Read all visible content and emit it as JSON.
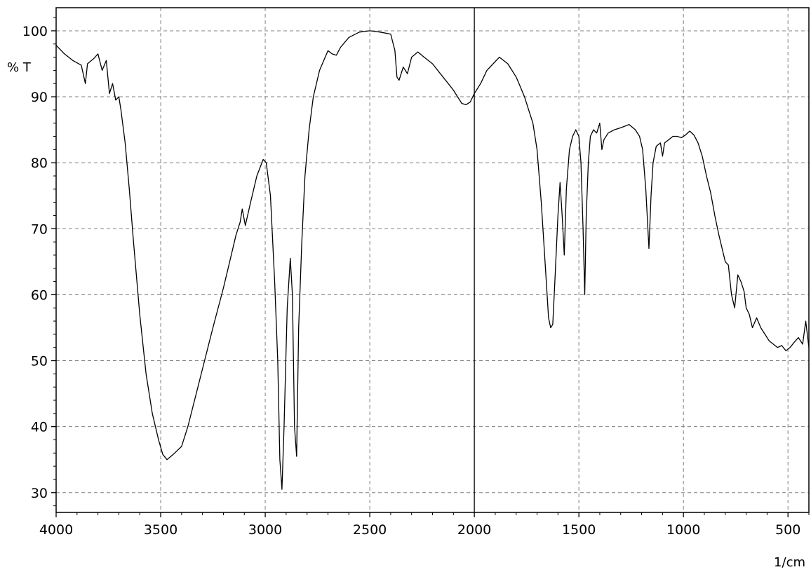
{
  "chart_data": {
    "type": "line",
    "title": "",
    "xlabel": "1/cm",
    "ylabel": "% T",
    "x_reversed": true,
    "xlim": [
      4000,
      400
    ],
    "ylim": [
      27,
      103.5
    ],
    "grid": true,
    "marker_line_x": 2000,
    "x_ticks": [
      4000,
      3500,
      3000,
      2500,
      2000,
      1500,
      1000,
      500
    ],
    "x_tick_labels": [
      "4000",
      "3500",
      "3000",
      "2500",
      "2000",
      "1500",
      "1000",
      "500"
    ],
    "y_ticks": [
      30,
      40,
      50,
      60,
      70,
      80,
      90,
      100
    ],
    "y_tick_labels": [
      "30",
      "40",
      "50",
      "60",
      "70",
      "80",
      "90",
      "100"
    ],
    "series": [
      {
        "color": "#000000",
        "points": [
          [
            4000,
            97.8
          ],
          [
            3960,
            96.5
          ],
          [
            3920,
            95.5
          ],
          [
            3880,
            94.8
          ],
          [
            3860,
            92.0
          ],
          [
            3850,
            95.0
          ],
          [
            3820,
            95.8
          ],
          [
            3800,
            96.5
          ],
          [
            3780,
            94.0
          ],
          [
            3760,
            95.5
          ],
          [
            3745,
            90.5
          ],
          [
            3730,
            92.0
          ],
          [
            3715,
            89.5
          ],
          [
            3700,
            90.0
          ],
          [
            3690,
            88.0
          ],
          [
            3670,
            83.0
          ],
          [
            3650,
            76.0
          ],
          [
            3630,
            68.0
          ],
          [
            3600,
            57.0
          ],
          [
            3570,
            48.0
          ],
          [
            3540,
            42.0
          ],
          [
            3510,
            38.0
          ],
          [
            3490,
            35.8
          ],
          [
            3470,
            35.0
          ],
          [
            3440,
            35.8
          ],
          [
            3400,
            37.0
          ],
          [
            3370,
            40.0
          ],
          [
            3330,
            45.0
          ],
          [
            3290,
            50.0
          ],
          [
            3250,
            55.0
          ],
          [
            3200,
            61.0
          ],
          [
            3170,
            65.0
          ],
          [
            3140,
            69.0
          ],
          [
            3120,
            71.0
          ],
          [
            3110,
            73.0
          ],
          [
            3095,
            70.5
          ],
          [
            3070,
            74.0
          ],
          [
            3040,
            78.0
          ],
          [
            3010,
            80.5
          ],
          [
            2995,
            80.0
          ],
          [
            2975,
            75.0
          ],
          [
            2955,
            62.0
          ],
          [
            2940,
            50.0
          ],
          [
            2930,
            35.0
          ],
          [
            2920,
            30.5
          ],
          [
            2910,
            40.0
          ],
          [
            2895,
            58.0
          ],
          [
            2880,
            65.5
          ],
          [
            2870,
            60.0
          ],
          [
            2860,
            40.0
          ],
          [
            2850,
            35.5
          ],
          [
            2840,
            55.0
          ],
          [
            2825,
            68.0
          ],
          [
            2810,
            78.0
          ],
          [
            2790,
            85.0
          ],
          [
            2770,
            90.0
          ],
          [
            2740,
            94.0
          ],
          [
            2720,
            95.5
          ],
          [
            2700,
            97.0
          ],
          [
            2680,
            96.5
          ],
          [
            2660,
            96.3
          ],
          [
            2640,
            97.5
          ],
          [
            2600,
            99.0
          ],
          [
            2550,
            99.8
          ],
          [
            2500,
            100.0
          ],
          [
            2450,
            99.8
          ],
          [
            2400,
            99.5
          ],
          [
            2380,
            97.0
          ],
          [
            2370,
            93.0
          ],
          [
            2360,
            92.5
          ],
          [
            2340,
            94.5
          ],
          [
            2320,
            93.5
          ],
          [
            2300,
            96.0
          ],
          [
            2270,
            96.8
          ],
          [
            2240,
            96.0
          ],
          [
            2200,
            95.0
          ],
          [
            2150,
            93.0
          ],
          [
            2100,
            91.0
          ],
          [
            2060,
            89.0
          ],
          [
            2040,
            88.8
          ],
          [
            2020,
            89.2
          ],
          [
            2000,
            90.5
          ],
          [
            1970,
            92.0
          ],
          [
            1940,
            94.0
          ],
          [
            1910,
            95.0
          ],
          [
            1880,
            96.0
          ],
          [
            1860,
            95.5
          ],
          [
            1840,
            95.0
          ],
          [
            1820,
            94.0
          ],
          [
            1800,
            93.0
          ],
          [
            1780,
            91.5
          ],
          [
            1760,
            90.0
          ],
          [
            1740,
            88.0
          ],
          [
            1720,
            86.0
          ],
          [
            1700,
            82.0
          ],
          [
            1680,
            74.0
          ],
          [
            1660,
            64.0
          ],
          [
            1645,
            56.5
          ],
          [
            1635,
            55.0
          ],
          [
            1625,
            55.5
          ],
          [
            1615,
            62.0
          ],
          [
            1600,
            72.0
          ],
          [
            1590,
            77.0
          ],
          [
            1580,
            72.0
          ],
          [
            1570,
            66.0
          ],
          [
            1560,
            76.0
          ],
          [
            1545,
            82.0
          ],
          [
            1530,
            84.0
          ],
          [
            1515,
            85.0
          ],
          [
            1500,
            84.0
          ],
          [
            1490,
            80.0
          ],
          [
            1480,
            70.0
          ],
          [
            1472,
            60.0
          ],
          [
            1465,
            72.0
          ],
          [
            1455,
            80.0
          ],
          [
            1445,
            84.0
          ],
          [
            1430,
            85.0
          ],
          [
            1415,
            84.5
          ],
          [
            1400,
            86.0
          ],
          [
            1390,
            82.0
          ],
          [
            1380,
            83.5
          ],
          [
            1360,
            84.5
          ],
          [
            1330,
            85.0
          ],
          [
            1300,
            85.3
          ],
          [
            1260,
            85.8
          ],
          [
            1230,
            85.0
          ],
          [
            1210,
            84.0
          ],
          [
            1195,
            82.0
          ],
          [
            1180,
            76.0
          ],
          [
            1165,
            67.0
          ],
          [
            1155,
            75.0
          ],
          [
            1145,
            80.0
          ],
          [
            1130,
            82.5
          ],
          [
            1110,
            83.0
          ],
          [
            1100,
            81.0
          ],
          [
            1090,
            83.0
          ],
          [
            1070,
            83.5
          ],
          [
            1050,
            84.0
          ],
          [
            1030,
            84.0
          ],
          [
            1010,
            83.8
          ],
          [
            990,
            84.2
          ],
          [
            970,
            84.8
          ],
          [
            950,
            84.2
          ],
          [
            930,
            83.0
          ],
          [
            910,
            81.0
          ],
          [
            890,
            78.0
          ],
          [
            870,
            75.5
          ],
          [
            850,
            72.0
          ],
          [
            830,
            69.0
          ],
          [
            815,
            67.0
          ],
          [
            800,
            65.0
          ],
          [
            785,
            64.5
          ],
          [
            770,
            60.0
          ],
          [
            755,
            58.0
          ],
          [
            740,
            63.0
          ],
          [
            725,
            62.0
          ],
          [
            710,
            60.5
          ],
          [
            700,
            58.0
          ],
          [
            685,
            57.0
          ],
          [
            670,
            55.0
          ],
          [
            650,
            56.5
          ],
          [
            630,
            55.0
          ],
          [
            610,
            54.0
          ],
          [
            590,
            53.0
          ],
          [
            570,
            52.5
          ],
          [
            550,
            52.0
          ],
          [
            530,
            52.3
          ],
          [
            510,
            51.5
          ],
          [
            490,
            52.0
          ],
          [
            470,
            52.8
          ],
          [
            450,
            53.5
          ],
          [
            430,
            52.5
          ],
          [
            415,
            56.0
          ],
          [
            400,
            52.0
          ]
        ]
      }
    ]
  }
}
